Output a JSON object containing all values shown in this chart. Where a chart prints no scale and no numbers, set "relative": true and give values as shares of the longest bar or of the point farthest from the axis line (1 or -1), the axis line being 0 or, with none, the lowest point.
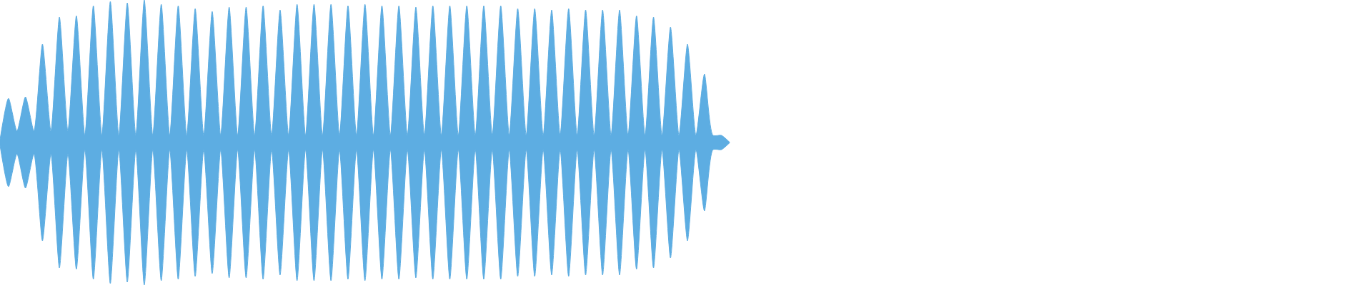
{
  "chart_data": {
    "type": "area",
    "relative": true,
    "categories": [
      null,
      null,
      null,
      null,
      null,
      null,
      null,
      null,
      null,
      null,
      null,
      null,
      null,
      null,
      null,
      null,
      null,
      null,
      null,
      null,
      null,
      null,
      null,
      null,
      null,
      null,
      null,
      null,
      null,
      null,
      null,
      null,
      null,
      null,
      null,
      null,
      null,
      null,
      null,
      null,
      null,
      null,
      null,
      null,
      null,
      null,
      null,
      null,
      null,
      null,
      null,
      null,
      null,
      null,
      null,
      null,
      null,
      null,
      null,
      null,
      null,
      null,
      null,
      null,
      null,
      null,
      null,
      null,
      null,
      null,
      null,
      null,
      null,
      null,
      null,
      null,
      null,
      null,
      null,
      null,
      null,
      null,
      null,
      null,
      null,
      null,
      null
    ],
    "series": [
      {
        "color": "#5dade2",
        "values": [
          0.02,
          0.31,
          0.08,
          0.32,
          0.08,
          0.69,
          0.08,
          0.88,
          0.08,
          0.89,
          0.05,
          0.96,
          0.05,
          0.99,
          0.05,
          0.98,
          0.05,
          1.0,
          0.05,
          0.97,
          0.05,
          0.96,
          0.05,
          0.94,
          0.05,
          0.92,
          0.05,
          0.95,
          0.05,
          0.95,
          0.05,
          0.96,
          0.05,
          0.93,
          0.05,
          0.97,
          0.05,
          0.97,
          0.05,
          0.97,
          0.05,
          0.96,
          0.05,
          0.97,
          0.05,
          0.96,
          0.05,
          0.96,
          0.05,
          0.95,
          0.05,
          0.96,
          0.05,
          0.96,
          0.05,
          0.96,
          0.05,
          0.96,
          0.05,
          0.96,
          0.05,
          0.94,
          0.05,
          0.94,
          0.05,
          0.93,
          0.05,
          0.94,
          0.05,
          0.93,
          0.05,
          0.93,
          0.05,
          0.93,
          0.05,
          0.89,
          0.05,
          0.88,
          0.05,
          0.81,
          0.05,
          0.69,
          0.05,
          0.48,
          0.05,
          0.05,
          0
        ]
      },
      {
        "color": "#5dade2",
        "values": [
          -0.02,
          -0.31,
          -0.08,
          -0.32,
          -0.08,
          -0.69,
          -0.08,
          -0.88,
          -0.08,
          -0.89,
          -0.05,
          -0.96,
          -0.05,
          -0.99,
          -0.05,
          -0.98,
          -0.05,
          -1.0,
          -0.05,
          -0.97,
          -0.05,
          -0.96,
          -0.05,
          -0.94,
          -0.05,
          -0.92,
          -0.05,
          -0.95,
          -0.05,
          -0.95,
          -0.05,
          -0.96,
          -0.05,
          -0.93,
          -0.05,
          -0.97,
          -0.05,
          -0.97,
          -0.05,
          -0.97,
          -0.05,
          -0.96,
          -0.05,
          -0.97,
          -0.05,
          -0.96,
          -0.05,
          -0.96,
          -0.05,
          -0.95,
          -0.05,
          -0.96,
          -0.05,
          -0.96,
          -0.05,
          -0.96,
          -0.05,
          -0.96,
          -0.05,
          -0.96,
          -0.05,
          -0.94,
          -0.05,
          -0.94,
          -0.05,
          -0.93,
          -0.05,
          -0.94,
          -0.05,
          -0.93,
          -0.05,
          -0.93,
          -0.05,
          -0.93,
          -0.05,
          -0.89,
          -0.05,
          -0.88,
          -0.05,
          -0.81,
          -0.05,
          -0.69,
          -0.05,
          -0.48,
          -0.05,
          -0.05,
          0
        ]
      }
    ]
  }
}
